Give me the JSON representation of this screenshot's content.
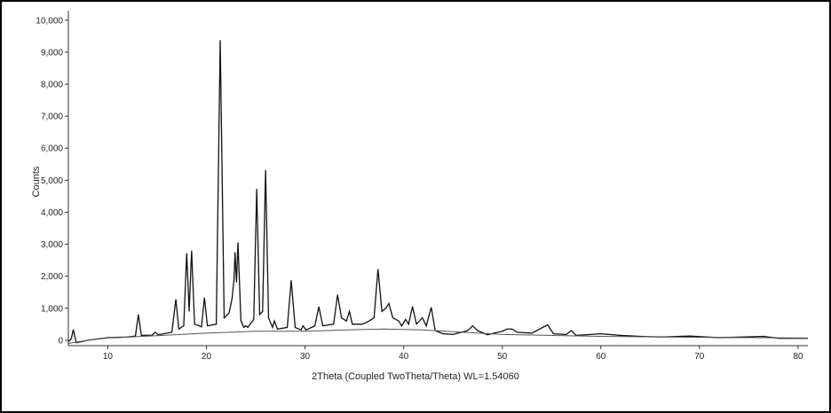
{
  "chart_data": {
    "type": "line",
    "x_label": "2Theta (Coupled TwoTheta/Theta) WL=1.54060",
    "y_label": "Counts",
    "xlim": [
      6,
      81
    ],
    "ylim": [
      -170,
      10300
    ],
    "xticks": [
      10,
      20,
      30,
      40,
      50,
      60,
      70,
      80
    ],
    "yticks": [
      0,
      {
        "value": 1000,
        "label": "1,000"
      },
      {
        "value": 2000,
        "label": "2,000"
      },
      {
        "value": 3000,
        "label": "3,000"
      },
      {
        "value": 4000,
        "label": "4,000"
      },
      {
        "value": 5000,
        "label": "5,000"
      },
      {
        "value": 6000,
        "label": "6,000"
      },
      {
        "value": 7000,
        "label": "7,000"
      },
      {
        "value": 8000,
        "label": "8,000"
      },
      {
        "value": 9000,
        "label": "9,000"
      },
      {
        "value": 10000,
        "label": "10,000"
      }
    ],
    "grid": false,
    "series": [
      {
        "color": "#111111",
        "x": [
          6,
          6.3,
          6.5,
          6.8,
          8,
          10,
          12,
          12.8,
          13.1,
          13.4,
          14.5,
          14.8,
          15.1,
          16.5,
          16.9,
          17.2,
          17.7,
          18.0,
          18.25,
          18.5,
          18.8,
          19.5,
          19.8,
          20.1,
          21.0,
          21.4,
          21.8,
          22.3,
          22.6,
          22.8,
          22.9,
          23.05,
          23.2,
          23.5,
          23.8,
          24.0,
          24.2,
          24.8,
          25.1,
          25.4,
          25.7,
          26.0,
          26.3,
          26.7,
          26.9,
          27.2,
          28.2,
          28.6,
          29.0,
          29.6,
          29.8,
          30.1,
          31.0,
          31.4,
          31.8,
          32.9,
          33.3,
          33.7,
          34.2,
          34.5,
          34.8,
          35.8,
          36.5,
          37.0,
          37.4,
          37.8,
          38.2,
          38.5,
          38.9,
          39.5,
          39.8,
          40.2,
          40.5,
          40.9,
          41.3,
          41.9,
          42.3,
          42.8,
          43.2,
          44,
          45,
          46.5,
          47,
          47.5,
          48.5,
          50,
          50.5,
          51,
          51.5,
          53,
          54.6,
          55.2,
          56.5,
          57,
          57.5,
          59,
          60,
          62,
          64,
          66,
          69,
          72,
          76.5,
          78,
          81
        ],
        "values": [
          -50,
          50,
          330,
          -80,
          0,
          80,
          100,
          130,
          800,
          150,
          160,
          250,
          170,
          250,
          1280,
          350,
          450,
          2720,
          900,
          2800,
          500,
          420,
          1330,
          450,
          500,
          9380,
          700,
          850,
          1300,
          1900,
          2750,
          1800,
          3060,
          600,
          400,
          450,
          400,
          650,
          4730,
          800,
          900,
          5320,
          700,
          400,
          600,
          350,
          400,
          1870,
          400,
          320,
          450,
          320,
          450,
          1050,
          450,
          500,
          1420,
          700,
          600,
          900,
          500,
          500,
          600,
          700,
          2220,
          900,
          1000,
          1150,
          700,
          600,
          450,
          650,
          500,
          1050,
          500,
          700,
          450,
          1030,
          300,
          200,
          180,
          300,
          450,
          300,
          170,
          280,
          350,
          350,
          250,
          220,
          480,
          200,
          180,
          300,
          150,
          180,
          200,
          150,
          120,
          100,
          130,
          80,
          120,
          60,
          60
        ]
      },
      {
        "color": "#555555",
        "x": [
          6,
          8,
          10,
          15,
          20,
          25,
          30,
          35,
          38,
          42,
          46,
          50,
          60,
          70,
          81
        ],
        "values": [
          -100,
          0,
          70,
          140,
          220,
          280,
          280,
          330,
          350,
          320,
          250,
          180,
          120,
          90,
          70
        ]
      }
    ]
  }
}
